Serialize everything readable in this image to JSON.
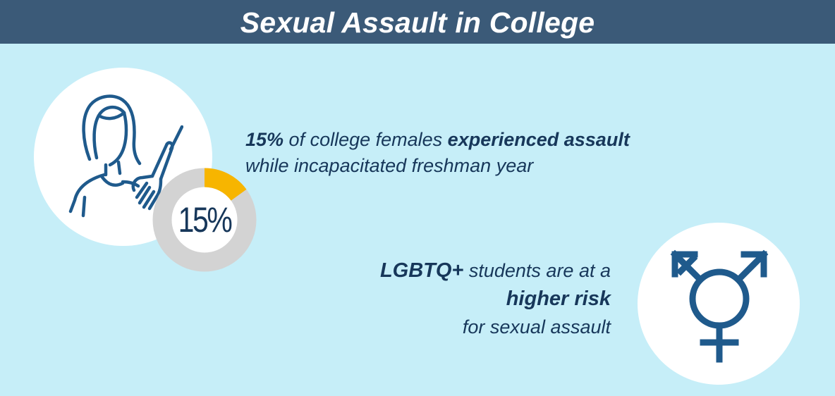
{
  "header": {
    "title": "Sexual Assault in College"
  },
  "stat_block": {
    "percent_bold": "15%",
    "text_1": " of college females ",
    "text_2_bold": "experienced assault",
    "line_2": "while incapacitated freshman year"
  },
  "donut": {
    "label": "15%",
    "value_fraction": 0.15,
    "fill_color": "#f7b500",
    "track_color": "#d3d3d3"
  },
  "risk_block": {
    "line_1_bold": "LGBTQ+",
    "line_1_rest": " students are at a",
    "line_2_bold": "higher risk",
    "line_3": "for sexual assault"
  },
  "icons": {
    "woman": "woman-with-hand-on-shoulder-icon",
    "gender": "transgender-symbol-icon"
  },
  "colors": {
    "header_bg": "#3b5a78",
    "page_bg": "#c6eef8",
    "text_navy": "#17375a",
    "icon_blue": "#1f5a8c"
  }
}
